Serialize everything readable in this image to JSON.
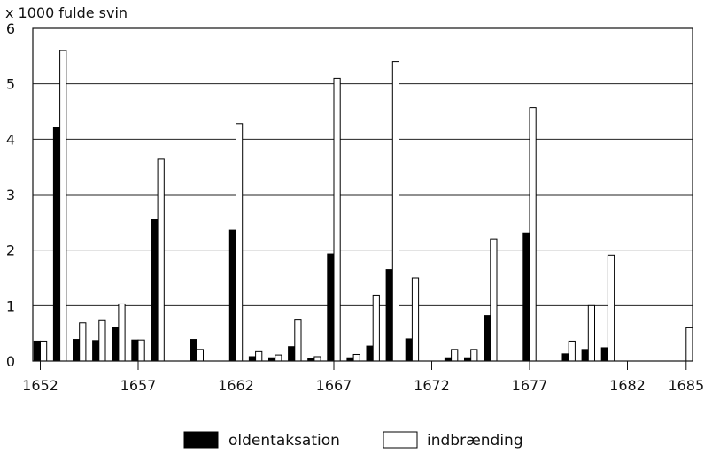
{
  "chart_data": {
    "type": "bar",
    "title": "",
    "ylabel": "x 1000 fulde svin",
    "xlabel": "",
    "ylim": [
      0,
      6
    ],
    "yticks": [
      0,
      1,
      2,
      3,
      4,
      5,
      6
    ],
    "xlim": [
      1652,
      1685
    ],
    "xticks": [
      1652,
      1657,
      1662,
      1667,
      1672,
      1677,
      1682,
      1685
    ],
    "grid": true,
    "legend_position": "bottom",
    "x": [
      1652,
      1653,
      1654,
      1655,
      1656,
      1657,
      1658,
      1659,
      1660,
      1661,
      1662,
      1663,
      1664,
      1665,
      1666,
      1667,
      1668,
      1669,
      1670,
      1671,
      1672,
      1673,
      1674,
      1675,
      1676,
      1677,
      1678,
      1679,
      1680,
      1681,
      1682,
      1683,
      1684,
      1685
    ],
    "series": [
      {
        "name": "oldentaksation",
        "color": "#000000",
        "values": [
          0.36,
          4.22,
          0.39,
          0.37,
          0.61,
          0.38,
          2.55,
          0,
          0.39,
          0,
          2.36,
          0.08,
          0.06,
          0.26,
          0.05,
          1.93,
          0.06,
          0.27,
          1.65,
          0.4,
          0,
          0.06,
          0.06,
          0.82,
          0,
          2.31,
          0,
          0.13,
          0.21,
          0.24,
          0,
          0,
          0,
          0
        ]
      },
      {
        "name": "indbrænding",
        "color": "#ffffff",
        "values": [
          0.36,
          5.6,
          0.69,
          0.73,
          1.03,
          0.38,
          3.64,
          0,
          0.21,
          0,
          4.28,
          0.17,
          0.11,
          0.74,
          0.08,
          5.1,
          0.12,
          1.19,
          5.4,
          1.5,
          0,
          0.21,
          0.21,
          2.2,
          0,
          4.57,
          0,
          0.36,
          1.0,
          1.91,
          0,
          0,
          0,
          0.6
        ]
      }
    ]
  }
}
